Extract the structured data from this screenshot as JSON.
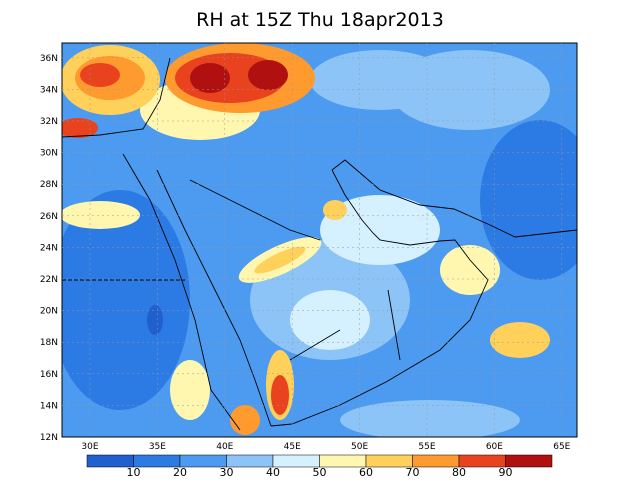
{
  "title": "RH at 15Z Thu 18apr2013",
  "lat_labels": [
    "12N",
    "14N",
    "16N",
    "18N",
    "20N",
    "22N",
    "24N",
    "26N",
    "28N",
    "30N",
    "32N",
    "34N",
    "36N"
  ],
  "lon_labels": [
    "30E",
    "35E",
    "40E",
    "45E",
    "50E",
    "55E",
    "60E",
    "65E"
  ],
  "colorbar": {
    "labels": [
      "10",
      "20",
      "30",
      "40",
      "50",
      "60",
      "70",
      "80",
      "90"
    ]
  }
}
